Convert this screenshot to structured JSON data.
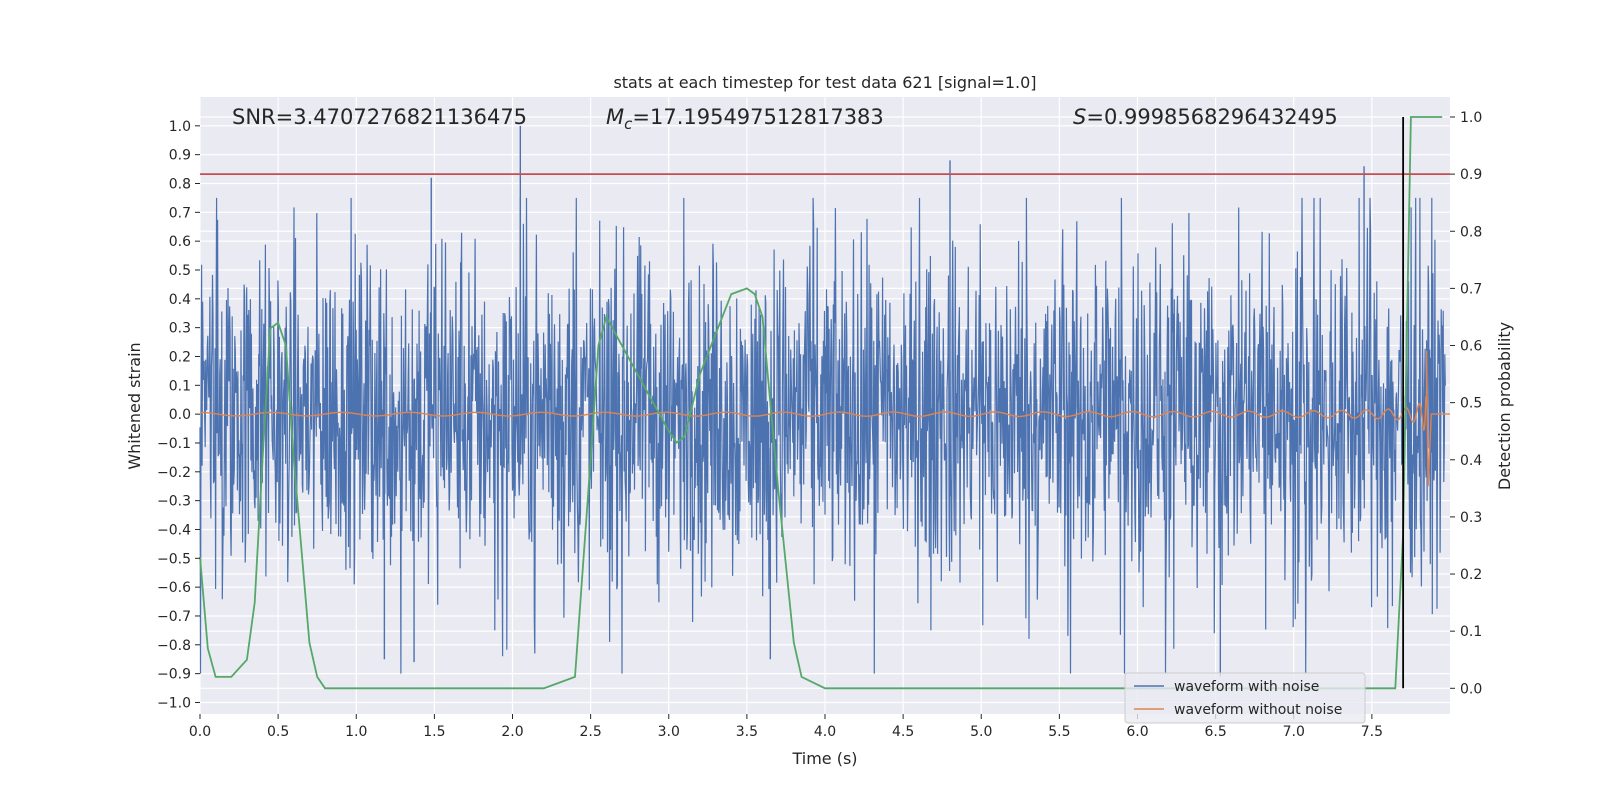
{
  "chart_data": {
    "type": "line",
    "title": "stats at each timestep for test data 621 [signal=1.0]",
    "xlabel": "Time (s)",
    "ylabel": "Whitened strain",
    "y2label": "Detection probability",
    "xlim": [
      0.0,
      8.0
    ],
    "ylim": [
      -1.04,
      1.1
    ],
    "y2lim": [
      -0.045,
      1.035
    ],
    "grid": true,
    "x_ticks": [
      "0.0",
      "0.5",
      "1.0",
      "1.5",
      "2.0",
      "2.5",
      "3.0",
      "3.5",
      "4.0",
      "4.5",
      "5.0",
      "5.5",
      "6.0",
      "6.5",
      "7.0",
      "7.5"
    ],
    "y_ticks": [
      "1.0",
      "0.9",
      "0.8",
      "0.7",
      "0.6",
      "0.5",
      "0.4",
      "0.3",
      "0.2",
      "0.1",
      "0.0",
      "−0.1",
      "−0.2",
      "−0.3",
      "−0.4",
      "−0.5",
      "−0.6",
      "−0.7",
      "−0.8",
      "−0.9",
      "−1.0"
    ],
    "y2_ticks": [
      "1.0",
      "0.9",
      "0.8",
      "0.7",
      "0.6",
      "0.5",
      "0.4",
      "0.3",
      "0.2",
      "0.1",
      "0.0"
    ],
    "annotations": {
      "snr": "SNR=3.4707276821136475",
      "mc_symbol": "M",
      "mc_sub": "c",
      "mc_value": "=17.195497512817383",
      "s_symbol": "S",
      "s_value": "=0.9998568296432495"
    },
    "threshold_line": {
      "y2": 0.9,
      "color": "#c44e52"
    },
    "vertical_marker": {
      "x": 7.7,
      "y2_range": [
        0.0,
        1.0
      ],
      "color": "#000000"
    },
    "legend": {
      "placement": "lower-right",
      "entries": [
        "waveform with noise",
        "waveform without noise"
      ]
    },
    "series": [
      {
        "name": "waveform with noise",
        "color": "#4c72b0",
        "axis": "left",
        "description_envelope": {
          "typical_amplitude": 0.3,
          "max_peak": 1.0,
          "min_peak": -0.9
        },
        "notable_peaks": [
          {
            "x": 2.05,
            "y": 1.0
          },
          {
            "x": 1.48,
            "y": 0.82
          },
          {
            "x": 4.8,
            "y": 0.88
          },
          {
            "x": 7.45,
            "y": 0.86
          },
          {
            "x": 6.53,
            "y": -0.91
          },
          {
            "x": 1.18,
            "y": -0.85
          },
          {
            "x": 1.37,
            "y": -0.86
          },
          {
            "x": 3.65,
            "y": -0.85
          }
        ]
      },
      {
        "name": "waveform without noise",
        "color": "#dd8452",
        "axis": "left",
        "chirp_end_x": 7.85,
        "peak_max": 0.22,
        "peak_min": -0.25
      },
      {
        "name": "detection probability",
        "color": "#55a868",
        "axis": "right",
        "x": [
          0.0,
          0.05,
          0.1,
          0.2,
          0.3,
          0.35,
          0.4,
          0.45,
          0.5,
          0.55,
          0.6,
          0.7,
          0.75,
          0.8,
          1.0,
          2.0,
          2.2,
          2.3,
          2.4,
          2.5,
          2.55,
          2.6,
          2.8,
          3.0,
          3.05,
          3.1,
          3.2,
          3.3,
          3.4,
          3.5,
          3.55,
          3.6,
          3.7,
          3.8,
          3.85,
          4.0,
          7.6,
          7.65,
          7.7,
          7.75,
          7.8,
          7.95
        ],
        "y": [
          0.23,
          0.07,
          0.02,
          0.02,
          0.05,
          0.15,
          0.4,
          0.63,
          0.64,
          0.6,
          0.4,
          0.08,
          0.02,
          0.0,
          0.0,
          0.0,
          0.0,
          0.01,
          0.02,
          0.4,
          0.6,
          0.65,
          0.55,
          0.45,
          0.43,
          0.44,
          0.55,
          0.62,
          0.69,
          0.7,
          0.69,
          0.65,
          0.35,
          0.08,
          0.02,
          0.0,
          0.0,
          0.0,
          0.27,
          1.0,
          1.0,
          1.0
        ]
      }
    ]
  }
}
